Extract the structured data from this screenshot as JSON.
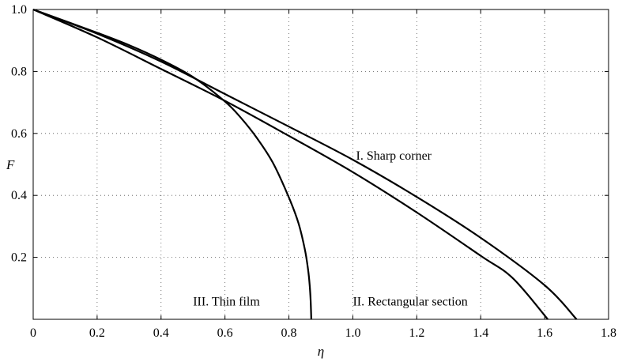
{
  "chart_data": {
    "type": "line",
    "title": "",
    "xlabel": "η",
    "ylabel": "F",
    "xlim": [
      0,
      1.8
    ],
    "ylim": [
      0,
      1.0
    ],
    "grid": true,
    "x_ticks": [
      0,
      0.2,
      0.4,
      0.6,
      0.8,
      1.0,
      1.2,
      1.4,
      1.6,
      1.8
    ],
    "x_tick_labels": [
      "0",
      "0.2",
      "0.4",
      "0.6",
      "0.8",
      "1.0",
      "1.2",
      "1.4",
      "1.6",
      "1.8"
    ],
    "y_ticks": [
      0.2,
      0.4,
      0.6,
      0.8,
      1.0
    ],
    "y_tick_labels": [
      "0.2",
      "0.4",
      "0.6",
      "0.8",
      "1.0"
    ],
    "series": [
      {
        "label": "I. Sharp corner",
        "points": [
          [
            0,
            1.0
          ],
          [
            0.2,
            0.922
          ],
          [
            0.4,
            0.832
          ],
          [
            0.6,
            0.727
          ],
          [
            0.8,
            0.622
          ],
          [
            1.0,
            0.515
          ],
          [
            1.2,
            0.395
          ],
          [
            1.4,
            0.263
          ],
          [
            1.6,
            0.11
          ],
          [
            1.7,
            0.0
          ]
        ]
      },
      {
        "label": "II. Rectangular section",
        "points": [
          [
            0,
            1.0
          ],
          [
            0.2,
            0.91
          ],
          [
            0.4,
            0.808
          ],
          [
            0.6,
            0.705
          ],
          [
            0.8,
            0.592
          ],
          [
            1.0,
            0.475
          ],
          [
            1.2,
            0.345
          ],
          [
            1.4,
            0.205
          ],
          [
            1.5,
            0.133
          ],
          [
            1.61,
            0.0
          ]
        ]
      },
      {
        "label": "III. Thin film",
        "points": [
          [
            0,
            1.0
          ],
          [
            0.2,
            0.925
          ],
          [
            0.3,
            0.885
          ],
          [
            0.4,
            0.838
          ],
          [
            0.5,
            0.782
          ],
          [
            0.6,
            0.703
          ],
          [
            0.65,
            0.65
          ],
          [
            0.7,
            0.585
          ],
          [
            0.75,
            0.505
          ],
          [
            0.8,
            0.393
          ],
          [
            0.83,
            0.31
          ],
          [
            0.85,
            0.225
          ],
          [
            0.86,
            0.16
          ],
          [
            0.865,
            0.11
          ],
          [
            0.868,
            0.06
          ],
          [
            0.87,
            0.0
          ]
        ]
      }
    ],
    "annotations": [
      {
        "text": "I. Sharp corner",
        "x": 1.01,
        "y": 0.515
      },
      {
        "text": "II. Rectangular section",
        "x": 1.0,
        "y": 0.045
      },
      {
        "text": "III. Thin film",
        "x": 0.5,
        "y": 0.045
      }
    ]
  }
}
